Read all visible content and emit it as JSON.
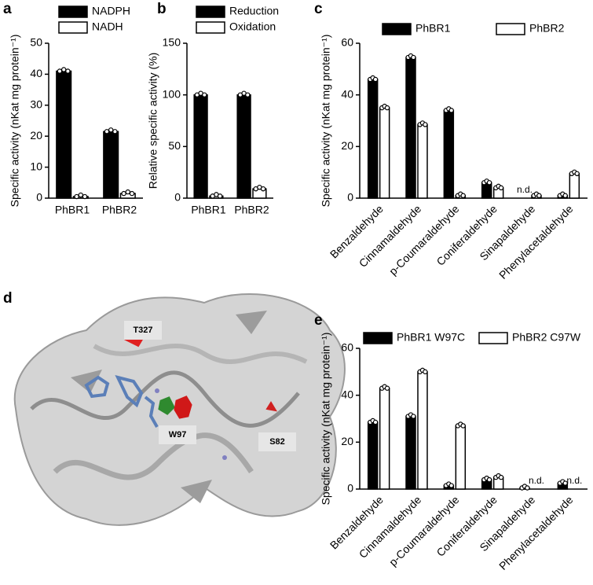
{
  "chart_data": [
    {
      "type": "bar",
      "label": "a",
      "y_label": "Specific activity (nKat mg protein⁻¹)",
      "categories": [
        "PhBR1",
        "PhBR2"
      ],
      "series": [
        {
          "name": "NADPH",
          "color": "#000000",
          "values": [
            41,
            21.5
          ]
        },
        {
          "name": "NADH",
          "color": "#ffffff",
          "values": [
            0.5,
            1.5
          ]
        }
      ],
      "ylim": [
        0,
        50
      ],
      "yticks": [
        0,
        10,
        20,
        30,
        40,
        50
      ]
    },
    {
      "type": "bar",
      "label": "b",
      "y_label": "Relative specific activity (%)",
      "categories": [
        "PhBR1",
        "PhBR2"
      ],
      "series": [
        {
          "name": "Reduction",
          "color": "#000000",
          "values": [
            100,
            100
          ]
        },
        {
          "name": "Oxidation",
          "color": "#ffffff",
          "values": [
            2,
            9
          ]
        }
      ],
      "ylim": [
        0,
        150
      ],
      "yticks": [
        0,
        50,
        100,
        150
      ]
    },
    {
      "type": "bar",
      "label": "c",
      "y_label": "Specific activity (nKat mg protein⁻¹)",
      "categories": [
        "Benzaldehyde",
        "Cinnamaldehyde",
        "p-Coumaraldehyde",
        "Coniferaldehyde",
        "Sinapaldehyde",
        "Phenylacetaldehyde"
      ],
      "series": [
        {
          "name": "PhBR1",
          "color": "#000000",
          "values": [
            46,
            54.5,
            34,
            6,
            null,
            1
          ],
          "value_labels": [
            null,
            null,
            null,
            null,
            "n.d.",
            null
          ]
        },
        {
          "name": "PhBR2",
          "color": "#ffffff",
          "values": [
            35,
            28.5,
            1,
            4,
            1,
            9.5
          ]
        }
      ],
      "ylim": [
        0,
        60
      ],
      "yticks": [
        0,
        20,
        40,
        60
      ]
    },
    {
      "type": "bar",
      "label": "e",
      "y_label": "Specific activity (nKat mg protein⁻¹)",
      "categories": [
        "Benzaldehyde",
        "Cinnamaldehyde",
        "p-Coumaraldehyde",
        "Coniferaldehyde",
        "Sinapaldehyde",
        "Phenylacetaldehyde"
      ],
      "series": [
        {
          "name": "PhBR1 W97C",
          "color": "#000000",
          "values": [
            28.5,
            31,
            1.5,
            4,
            0.5,
            2.5
          ]
        },
        {
          "name": "PhBR2 C97W",
          "color": "#ffffff",
          "values": [
            43,
            50,
            27,
            5,
            null,
            null
          ],
          "value_labels": [
            null,
            null,
            null,
            null,
            "n.d.",
            "n.d."
          ]
        }
      ],
      "ylim": [
        0,
        60
      ],
      "yticks": [
        0,
        20,
        40,
        60
      ]
    }
  ],
  "structure": {
    "label": "d",
    "residues": [
      "T327",
      "W97",
      "S82"
    ]
  }
}
